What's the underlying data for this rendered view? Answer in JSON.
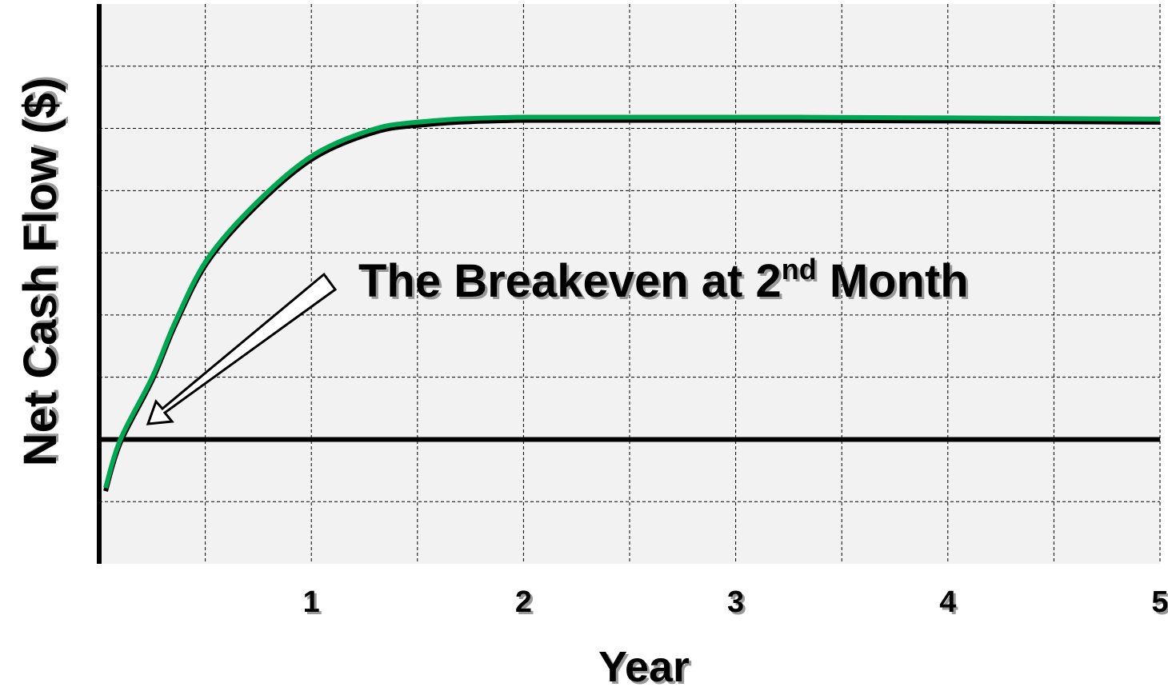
{
  "chart_data": {
    "type": "line",
    "ylabel": "Net Cash Flow ($)",
    "xlabel": "Year",
    "annotation": {
      "text": "The Breakeven at 2",
      "sup": "nd",
      "tail": " Month"
    },
    "xlim": [
      0,
      5
    ],
    "xticks": [
      1,
      2,
      3,
      4,
      5
    ],
    "xgrid": [
      0.5,
      1,
      1.5,
      2,
      2.5,
      3,
      3.5,
      4,
      4.5,
      5
    ],
    "ylim": [
      -2,
      7
    ],
    "ygrid": [
      -1,
      1,
      2,
      3,
      4,
      5,
      6
    ],
    "zero_line": 0,
    "grid": true,
    "series": [
      {
        "color": "#00a651",
        "x": [
          0.03,
          0.1,
          0.25,
          0.36,
          0.51,
          0.74,
          1.0,
          1.27,
          1.5,
          2.0,
          3.3,
          5.0
        ],
        "values": [
          -0.78,
          0,
          1.0,
          1.9,
          2.9,
          3.8,
          4.55,
          4.96,
          5.1,
          5.18,
          5.18,
          5.15
        ]
      }
    ]
  }
}
